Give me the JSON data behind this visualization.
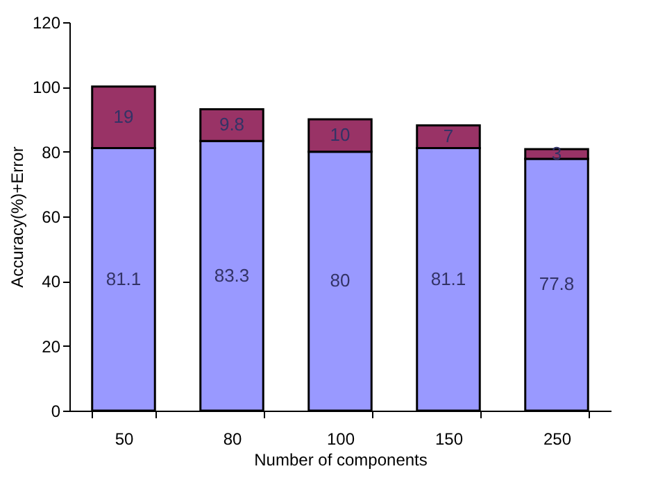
{
  "chart_data": {
    "type": "bar",
    "stacked": true,
    "xlabel": "Number of components",
    "ylabel": "Accuracy(%)+Error",
    "categories": [
      "50",
      "80",
      "100",
      "150",
      "250"
    ],
    "series": [
      {
        "color": "#9999ff",
        "values": [
          81.1,
          83.3,
          80,
          81.1,
          77.8
        ]
      },
      {
        "color": "#993366",
        "values": [
          19,
          9.8,
          10,
          7,
          3
        ]
      }
    ],
    "ylim": [
      0,
      120
    ],
    "yticks": [
      0,
      20,
      40,
      60,
      80,
      100,
      120
    ],
    "grid": false,
    "data_labels": true
  }
}
